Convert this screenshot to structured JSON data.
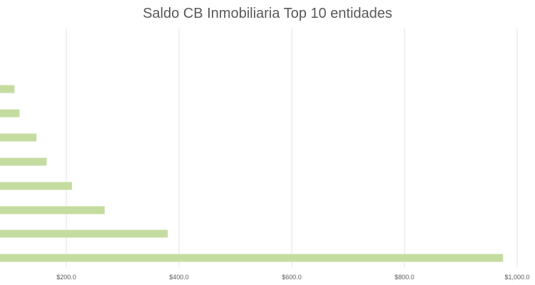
{
  "chart_data": {
    "type": "bar",
    "orientation": "horizontal",
    "title": "Saldo CB Inmobiliaria Top 10 entidades",
    "xlabel": "",
    "ylabel": "",
    "xlim": [
      100,
      1000
    ],
    "x_ticks": [
      200,
      400,
      600,
      800,
      1000
    ],
    "x_tick_labels": [
      "$200.0",
      "$400.0",
      "$600.0",
      "$800.0",
      "$1,000.0"
    ],
    "grid": true,
    "legend": "none",
    "bar_color": "#c5dca0",
    "grid_color": "#e3e3e3",
    "values": [
      108,
      117,
      147,
      165,
      210,
      268,
      380,
      975
    ]
  }
}
